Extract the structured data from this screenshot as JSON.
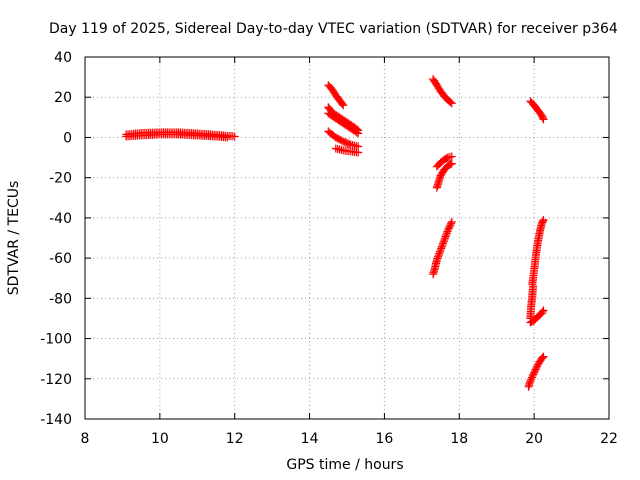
{
  "chart_data": {
    "type": "scatter",
    "title": "Day 119 of 2025, Sidereal Day-to-day VTEC variation (SDTVAR) for receiver p364",
    "xlabel": "GPS time / hours",
    "ylabel": "SDTVAR / TECUs",
    "xlim": [
      8,
      22
    ],
    "ylim": [
      -140,
      40
    ],
    "xticks": [
      8,
      10,
      12,
      14,
      16,
      18,
      20,
      22
    ],
    "yticks": [
      -140,
      -120,
      -100,
      -80,
      -60,
      -40,
      -20,
      0,
      20,
      40
    ],
    "grid": true,
    "marker": "+",
    "color": "#ff0000",
    "series": [
      {
        "x": [
          9.1,
          9.5,
          10.0,
          10.5,
          11.0,
          11.5,
          11.8,
          12.0
        ],
        "y": [
          1.5,
          2.2,
          2.5,
          2.5,
          2.0,
          1.3,
          0.8,
          0.5
        ]
      },
      {
        "x": [
          9.1,
          9.5,
          10.0,
          10.5,
          11.0,
          11.5,
          11.8
        ],
        "y": [
          0.5,
          1.0,
          1.5,
          1.5,
          1.0,
          0.5,
          0.0
        ]
      },
      {
        "x": [
          14.5,
          14.6,
          14.7,
          14.8,
          14.9
        ],
        "y": [
          26,
          24,
          21,
          18.5,
          16
        ]
      },
      {
        "x": [
          14.5,
          14.6,
          14.8,
          15.0,
          15.2,
          15.3
        ],
        "y": [
          15,
          12.5,
          10,
          7.5,
          5,
          3.5
        ]
      },
      {
        "x": [
          14.5,
          14.7,
          14.9,
          15.1,
          15.3
        ],
        "y": [
          12,
          9.5,
          7,
          4.5,
          2
        ]
      },
      {
        "x": [
          14.5,
          14.7,
          14.9,
          15.1,
          15.3
        ],
        "y": [
          3,
          0,
          -2,
          -3.5,
          -4.5
        ]
      },
      {
        "x": [
          14.7,
          14.9,
          15.1,
          15.3
        ],
        "y": [
          -5.5,
          -6.5,
          -7,
          -7.5
        ]
      },
      {
        "x": [
          17.3,
          17.4,
          17.5,
          17.6,
          17.7,
          17.8
        ],
        "y": [
          29,
          26,
          23,
          20.5,
          18.5,
          17
        ]
      },
      {
        "x": [
          17.4,
          17.5,
          17.6,
          17.7,
          17.8
        ],
        "y": [
          -14.5,
          -12.5,
          -11,
          -10,
          -9.5
        ]
      },
      {
        "x": [
          17.4,
          17.45,
          17.5,
          17.6,
          17.7,
          17.8
        ],
        "y": [
          -25,
          -22,
          -19,
          -16,
          -14,
          -13
        ]
      },
      {
        "x": [
          17.3,
          17.35,
          17.4,
          17.5,
          17.6,
          17.7,
          17.8
        ],
        "y": [
          -68,
          -65,
          -61,
          -56,
          -51,
          -46,
          -42
        ]
      },
      {
        "x": [
          19.9,
          20.0,
          20.1,
          20.2,
          20.25
        ],
        "y": [
          18,
          16,
          13.5,
          11,
          9
        ]
      },
      {
        "x": [
          19.95,
          20.0,
          20.05,
          20.1,
          20.15,
          20.2,
          20.25
        ],
        "y": [
          -73,
          -66,
          -58,
          -52,
          -47,
          -43,
          -41
        ]
      },
      {
        "x": [
          19.9,
          19.92,
          19.95,
          19.97
        ],
        "y": [
          -90,
          -84,
          -79,
          -74
        ]
      },
      {
        "x": [
          19.9,
          20.0,
          20.1,
          20.2,
          20.25
        ],
        "y": [
          -92,
          -91,
          -89,
          -87.5,
          -86
        ]
      },
      {
        "x": [
          19.85,
          19.9,
          20.0,
          20.1,
          20.2,
          20.25
        ],
        "y": [
          -124,
          -121,
          -117,
          -113,
          -110,
          -109
        ]
      }
    ]
  }
}
